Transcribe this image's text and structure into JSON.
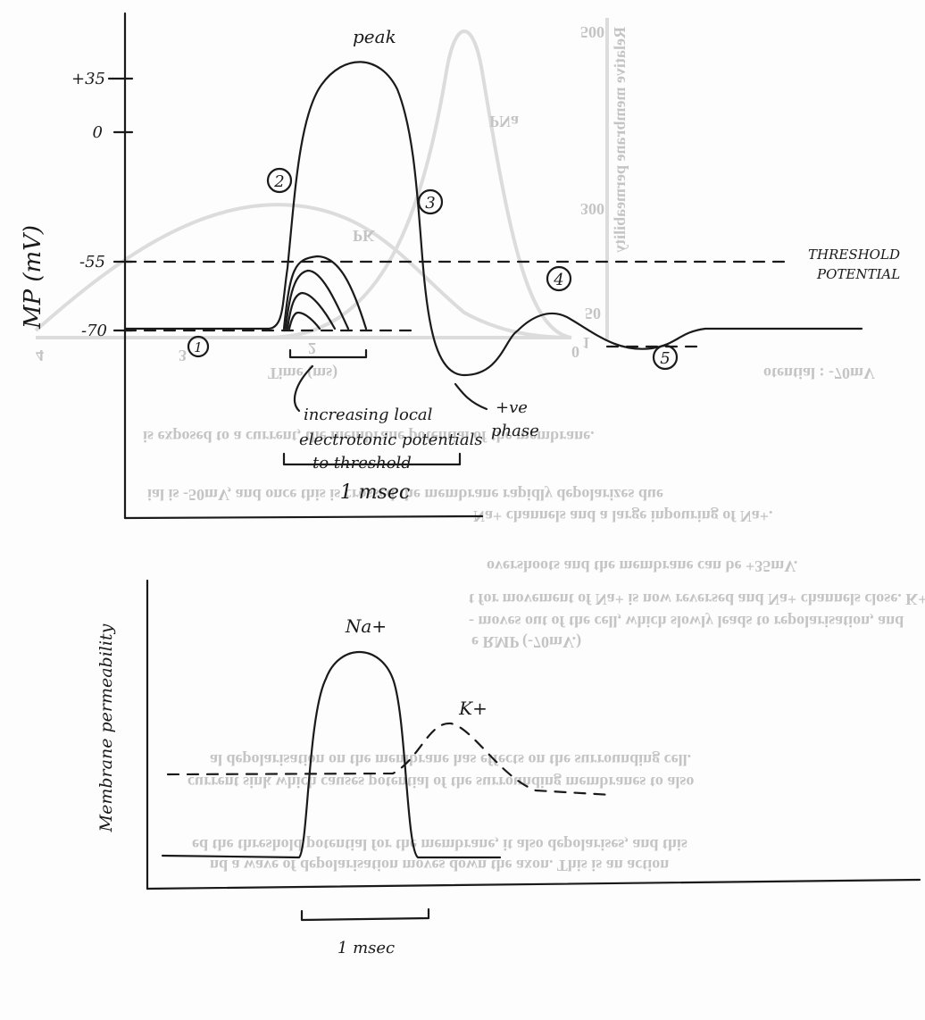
{
  "action_potential": {
    "peak_label": "peak",
    "y_axis_label": "MP (mV)",
    "y_ticks": [
      "+35",
      "0",
      "-55",
      "-70"
    ],
    "phases": [
      "1",
      "2",
      "3",
      "4",
      "5"
    ],
    "threshold_label": [
      "THRESHOLD",
      "POTENTIAL"
    ],
    "local_potentials_note": [
      "increasing local",
      "electrotonic potentials",
      "to threshold"
    ],
    "positive_phase_note": [
      "+ve",
      "phase"
    ],
    "time_scale": "1 msec"
  },
  "permeability": {
    "y_axis_label": "Membrane permeability",
    "na_label": "Na+",
    "k_label": "K+",
    "time_scale": "1 msec"
  },
  "bleed_through": {
    "text_lines": [
      "otential : -70mV",
      "is exposed to a current, the membrane potential of the membrane.",
      "ial is -50mV, and once this is crossed the membrane rapidly depolarizes due",
      "Na+ channels and a large inpouring of Na+.",
      "overshoots and the membrane can be +35mV.",
      "t for movement of Na+ is now reversed and Na+ channels close. K+",
      "- moves out of the cell, which slowly leads to repolarisation, and",
      "e RMP (-70mV.)",
      "al depolarisation on the membrane has effects on the surrounding cell.",
      "current sink which causes potential of the surrounding membranes to also",
      "ed the threshold potential for the membrane, it also depolarises, and this",
      "nd a wave of depolarisation moves down the axon. This is an action"
    ],
    "figure_axis_label": "Relative membrane permeability",
    "figure_ticks": [
      "500",
      "300",
      "50",
      "1",
      "0"
    ],
    "figure_curve_labels": [
      "PNa",
      "PK"
    ],
    "figure_time_ticks": [
      "4",
      "3",
      "2"
    ],
    "figure_time_label": "Time (ms)"
  }
}
